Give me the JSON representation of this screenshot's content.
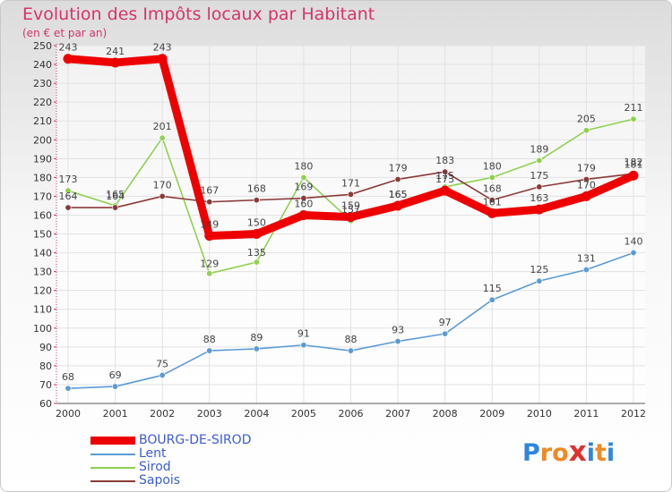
{
  "header": {
    "title": "Evolution des Impôts locaux par Habitant",
    "subtitle": "(en € et par an)"
  },
  "brand": {
    "letters": [
      "P",
      "r",
      "o",
      "x",
      "i",
      "t",
      "i"
    ],
    "colors": [
      "#2e86de",
      "#f08a24",
      "#f08a24",
      "#e03131",
      "#2e86de",
      "#f08a24",
      "#2e86de"
    ]
  },
  "chart_data": {
    "type": "line",
    "title": "Evolution des Impôts locaux par Habitant",
    "subtitle": "(en € et par an)",
    "xlabel": "",
    "ylabel": "",
    "ylim": [
      60,
      250
    ],
    "ytick_step": 10,
    "grid": true,
    "legend_position": "bottom-left",
    "categories": [
      "2000",
      "2001",
      "2002",
      "2003",
      "2004",
      "2005",
      "2006",
      "2007",
      "2008",
      "2009",
      "2010",
      "2011",
      "2012"
    ],
    "series": [
      {
        "name": "Lent",
        "color": "#5b9bd5",
        "width": "thin",
        "values": [
          68,
          69,
          75,
          88,
          89,
          91,
          88,
          93,
          97,
          115,
          125,
          131,
          140
        ]
      },
      {
        "name": "Sirod",
        "color": "#8fd14f",
        "width": "thin",
        "values": [
          173,
          165,
          201,
          129,
          135,
          180,
          157,
          165,
          175,
          180,
          189,
          205,
          211
        ]
      },
      {
        "name": "Sapois",
        "color": "#8b3a3a",
        "width": "thin",
        "values": [
          164,
          164,
          170,
          167,
          168,
          169,
          171,
          179,
          183,
          168,
          175,
          179,
          182
        ]
      },
      {
        "name": "BOURG-DE-SIROD",
        "color": "#ee0000",
        "width": "thick",
        "values": [
          243,
          241,
          243,
          149,
          150,
          160,
          159,
          165,
          173,
          161,
          163,
          170,
          181
        ]
      }
    ],
    "legend_order": [
      "BOURG-DE-SIROD",
      "Lent",
      "Sirod",
      "Sapois"
    ]
  }
}
